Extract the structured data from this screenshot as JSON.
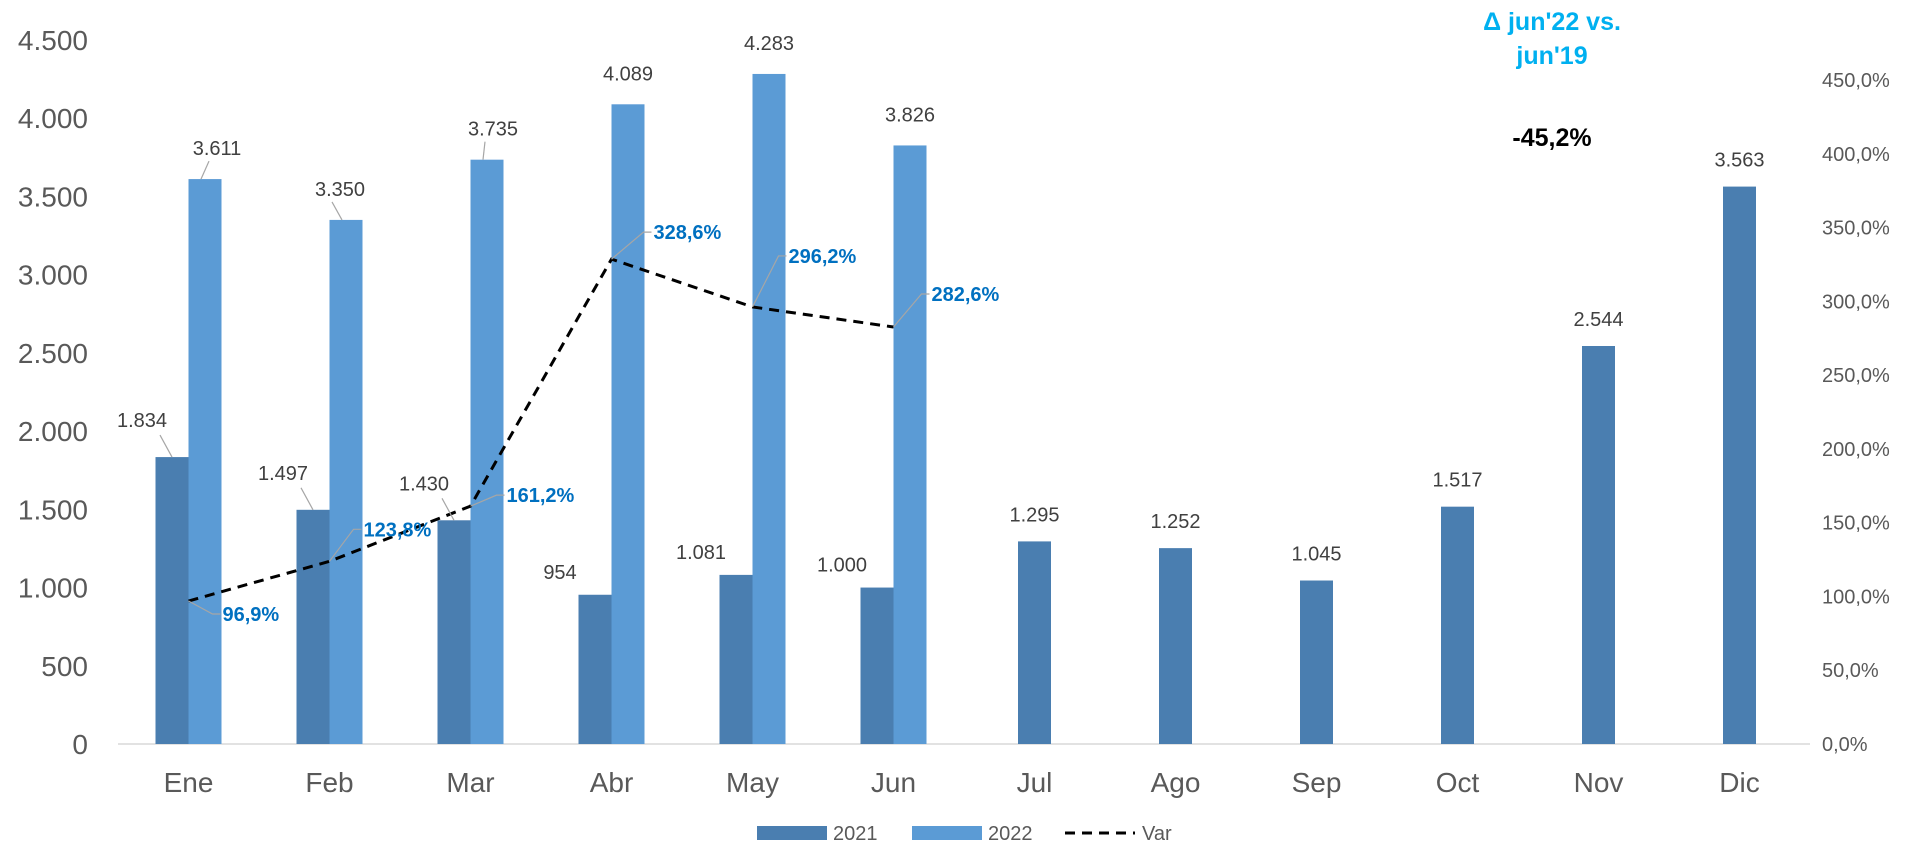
{
  "chart_data": {
    "type": "bar",
    "categories": [
      "Ene",
      "Feb",
      "Mar",
      "Abr",
      "May",
      "Jun",
      "Jul",
      "Ago",
      "Sep",
      "Oct",
      "Nov",
      "Dic"
    ],
    "series": [
      {
        "name": "2021",
        "type": "bar",
        "axis": "left",
        "color": "#4a7eb0",
        "values": [
          1834,
          1497,
          1430,
          954,
          1081,
          1000,
          1295,
          1252,
          1045,
          1517,
          2544,
          3563
        ],
        "labels": [
          "1.834",
          "1.497",
          "1.430",
          "954",
          "1.081",
          "1.000",
          "1.295",
          "1.252",
          "1.045",
          "1.517",
          "2.544",
          "3.563"
        ]
      },
      {
        "name": "2022",
        "type": "bar",
        "axis": "left",
        "color": "#5b9bd5",
        "values": [
          3611,
          3350,
          3735,
          4089,
          4283,
          3826,
          null,
          null,
          null,
          null,
          null,
          null
        ],
        "labels": [
          "3.611",
          "3.350",
          "3.735",
          "4.089",
          "4.283",
          "3.826",
          "",
          "",
          "",
          "",
          "",
          ""
        ]
      },
      {
        "name": "Var",
        "type": "line",
        "axis": "right",
        "style": "dashed",
        "color": "#000000",
        "values": [
          96.9,
          123.8,
          161.2,
          328.6,
          296.2,
          282.6,
          null,
          null,
          null,
          null,
          null,
          null
        ],
        "labels": [
          "96,9%",
          "123,8%",
          "161,2%",
          "328,6%",
          "296,2%",
          "282,6%",
          "",
          "",
          "",
          "",
          "",
          ""
        ]
      }
    ],
    "y_left": {
      "ylim": [
        0,
        4500
      ],
      "ticks": [
        0,
        500,
        1000,
        1500,
        2000,
        2500,
        3000,
        3500,
        4000,
        4500
      ],
      "tick_labels": [
        "0",
        "500",
        "1.000",
        "1.500",
        "2.000",
        "2.500",
        "3.000",
        "3.500",
        "4.000",
        "4.500"
      ]
    },
    "y_right": {
      "ylim": [
        0,
        450
      ],
      "ticks": [
        0,
        50,
        100,
        150,
        200,
        250,
        300,
        350,
        400,
        450
      ],
      "tick_labels": [
        "0,0%",
        "50,0%",
        "100,0%",
        "150,0%",
        "200,0%",
        "250,0%",
        "300,0%",
        "350,0%",
        "400,0%",
        "450,0%"
      ]
    },
    "grid": false,
    "legend_position": "bottom",
    "annotations": [
      {
        "text": "Δ jun'22 vs.",
        "color": "#00b0f0"
      },
      {
        "text": "jun'19",
        "color": "#00b0f0"
      },
      {
        "text": "-45,2%",
        "color": "#000000"
      }
    ]
  }
}
